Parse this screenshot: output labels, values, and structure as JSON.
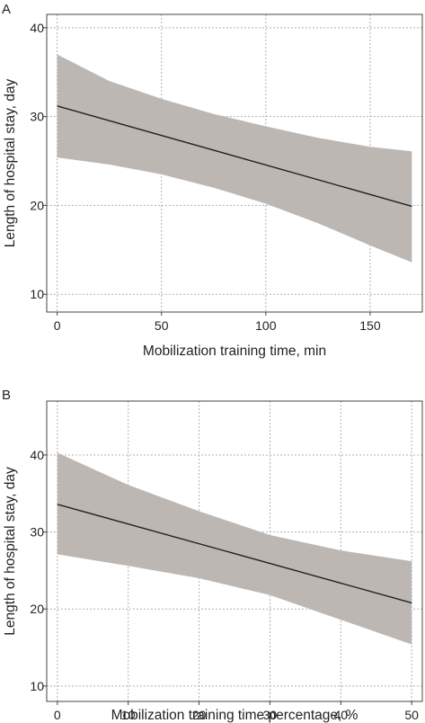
{
  "chart_data": [
    {
      "panel": "A",
      "type": "line",
      "xlabel": "Mobilization training time, min",
      "ylabel": "Length of hospital stay, day",
      "xlim": [
        -5,
        175
      ],
      "ylim": [
        8,
        41.5
      ],
      "xticks": [
        0,
        50,
        100,
        150
      ],
      "yticks": [
        10,
        20,
        30,
        40
      ],
      "grid": true,
      "series": [
        {
          "x": [
            0,
            170
          ],
          "y": [
            31.2,
            19.9
          ]
        }
      ],
      "ci_band": {
        "x": [
          0,
          25,
          50,
          75,
          100,
          125,
          150,
          170
        ],
        "upper": [
          37.0,
          34.0,
          32.0,
          30.3,
          28.9,
          27.6,
          26.6,
          26.1
        ],
        "lower": [
          25.4,
          24.6,
          23.5,
          22.0,
          20.2,
          18.0,
          15.5,
          13.6
        ]
      }
    },
    {
      "panel": "B",
      "type": "line",
      "xlabel": "Mobilization training time percentage, %",
      "ylabel": "Length of hospital stay, day",
      "xlim": [
        -1.5,
        51.5
      ],
      "ylim": [
        8,
        47
      ],
      "xticks": [
        0,
        10,
        20,
        30,
        40,
        50
      ],
      "yticks": [
        10,
        20,
        30,
        40
      ],
      "grid": true,
      "series": [
        {
          "x": [
            0,
            50
          ],
          "y": [
            33.6,
            20.8
          ]
        }
      ],
      "ci_band": {
        "x": [
          0,
          10,
          20,
          30,
          40,
          50
        ],
        "upper": [
          40.3,
          36.1,
          32.7,
          29.6,
          27.6,
          26.2
        ],
        "lower": [
          27.1,
          25.6,
          24.0,
          21.8,
          18.6,
          15.4
        ]
      }
    }
  ]
}
